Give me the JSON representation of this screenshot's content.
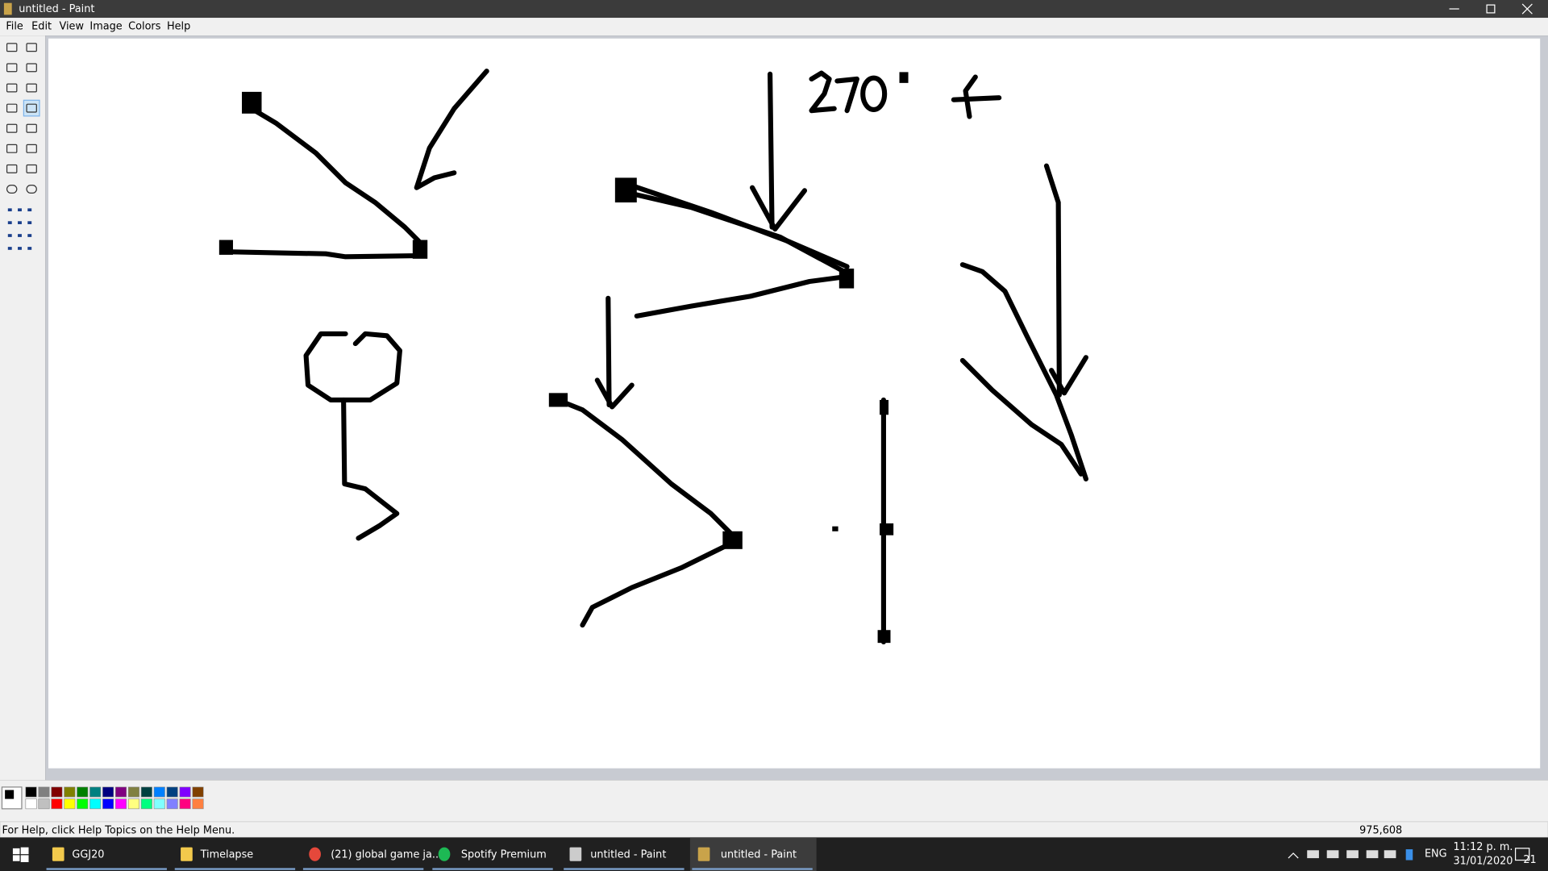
{
  "window": {
    "title": "untitled - Paint",
    "menu": [
      "File",
      "Edit",
      "View",
      "Image",
      "Colors",
      "Help"
    ]
  },
  "status_bar": {
    "help_text": "For Help, click Help Topics on the Help Menu.",
    "coordinates": "975,608"
  },
  "taskbar": {
    "items": [
      "GGJ20",
      "Timelapse",
      "(21) global game ja...",
      "Spotify Premium",
      "untitled - Paint",
      "untitled - Paint"
    ],
    "language": "ENG",
    "time": "11:12 p. m.",
    "date": "31/01/2020",
    "notifications": "21"
  }
}
